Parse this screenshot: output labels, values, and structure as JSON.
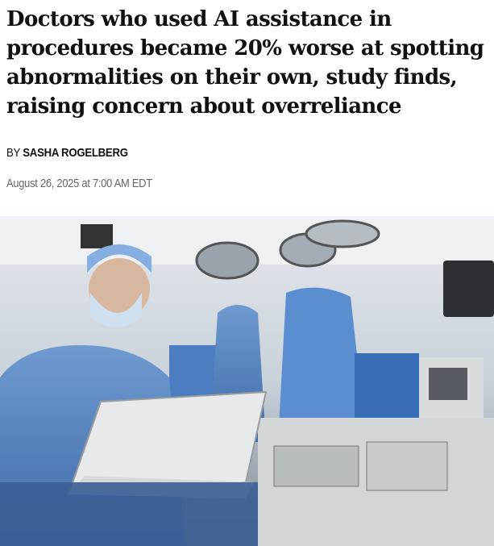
{
  "article": {
    "headline": "Doctors who used AI assistance in procedures became 20% worse at spotting abnormalities on their own, study finds, raising concern about overreliance",
    "byline_prefix": "BY",
    "author": "SASHA ROGELBERG",
    "date": "August 26, 2025 at 7:00 AM EDT"
  },
  "image": {
    "subject": "doctor-with-laptop-in-operating-room"
  }
}
